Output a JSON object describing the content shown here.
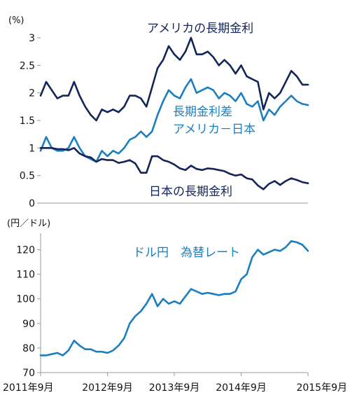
{
  "colors": {
    "navy": "#13245a",
    "blue": "#1a7fc1",
    "axis": "#9a9a9a"
  },
  "chart_data": [
    {
      "type": "line",
      "ylabel": "(%)",
      "ylim": [
        0,
        3
      ],
      "yticks": [
        "0",
        "0.5",
        "1",
        "1.5",
        "2",
        "2.5",
        "3"
      ],
      "x_range": [
        "2011-09",
        "2015-09"
      ],
      "series": [
        {
          "name": "アメリカの長期金利",
          "color": "navy",
          "points": [
            [
              "2011-09",
              1.95
            ],
            [
              "2011-10",
              2.2
            ],
            [
              "2011-11",
              2.05
            ],
            [
              "2011-12",
              1.9
            ],
            [
              "2012-01",
              1.95
            ],
            [
              "2012-02",
              1.95
            ],
            [
              "2012-03",
              2.2
            ],
            [
              "2012-04",
              1.95
            ],
            [
              "2012-05",
              1.75
            ],
            [
              "2012-06",
              1.6
            ],
            [
              "2012-07",
              1.5
            ],
            [
              "2012-08",
              1.7
            ],
            [
              "2012-09",
              1.65
            ],
            [
              "2012-10",
              1.7
            ],
            [
              "2012-11",
              1.65
            ],
            [
              "2012-12",
              1.75
            ],
            [
              "2013-01",
              1.95
            ],
            [
              "2013-02",
              1.95
            ],
            [
              "2013-03",
              1.9
            ],
            [
              "2013-04",
              1.75
            ],
            [
              "2013-05",
              2.1
            ],
            [
              "2013-06",
              2.45
            ],
            [
              "2013-07",
              2.6
            ],
            [
              "2013-08",
              2.85
            ],
            [
              "2013-09",
              2.7
            ],
            [
              "2013-10",
              2.6
            ],
            [
              "2013-11",
              2.75
            ],
            [
              "2013-12",
              3.0
            ],
            [
              "2014-01",
              2.7
            ],
            [
              "2014-02",
              2.7
            ],
            [
              "2014-03",
              2.75
            ],
            [
              "2014-04",
              2.65
            ],
            [
              "2014-05",
              2.5
            ],
            [
              "2014-06",
              2.6
            ],
            [
              "2014-07",
              2.5
            ],
            [
              "2014-08",
              2.35
            ],
            [
              "2014-09",
              2.5
            ],
            [
              "2014-10",
              2.3
            ],
            [
              "2014-11",
              2.25
            ],
            [
              "2014-12",
              2.2
            ],
            [
              "2015-01",
              1.7
            ],
            [
              "2015-02",
              2.0
            ],
            [
              "2015-03",
              1.9
            ],
            [
              "2015-04",
              2.0
            ],
            [
              "2015-05",
              2.2
            ],
            [
              "2015-06",
              2.4
            ],
            [
              "2015-07",
              2.3
            ],
            [
              "2015-08",
              2.15
            ],
            [
              "2015-09",
              2.15
            ]
          ]
        },
        {
          "name": "長期金利差 アメリカ－日本",
          "color": "blue",
          "points": [
            [
              "2011-09",
              0.95
            ],
            [
              "2011-10",
              1.2
            ],
            [
              "2011-11",
              1.0
            ],
            [
              "2011-12",
              0.95
            ],
            [
              "2012-01",
              0.95
            ],
            [
              "2012-02",
              1.0
            ],
            [
              "2012-03",
              1.2
            ],
            [
              "2012-04",
              1.0
            ],
            [
              "2012-05",
              0.85
            ],
            [
              "2012-06",
              0.8
            ],
            [
              "2012-07",
              0.75
            ],
            [
              "2012-08",
              0.95
            ],
            [
              "2012-09",
              0.85
            ],
            [
              "2012-10",
              0.95
            ],
            [
              "2012-11",
              0.9
            ],
            [
              "2012-12",
              1.0
            ],
            [
              "2013-01",
              1.15
            ],
            [
              "2013-02",
              1.2
            ],
            [
              "2013-03",
              1.3
            ],
            [
              "2013-04",
              1.2
            ],
            [
              "2013-05",
              1.3
            ],
            [
              "2013-06",
              1.6
            ],
            [
              "2013-07",
              1.85
            ],
            [
              "2013-08",
              2.05
            ],
            [
              "2013-09",
              1.95
            ],
            [
              "2013-10",
              1.9
            ],
            [
              "2013-11",
              2.1
            ],
            [
              "2013-12",
              2.25
            ],
            [
              "2014-01",
              2.0
            ],
            [
              "2014-02",
              2.05
            ],
            [
              "2014-03",
              2.1
            ],
            [
              "2014-04",
              2.05
            ],
            [
              "2014-05",
              1.9
            ],
            [
              "2014-06",
              2.0
            ],
            [
              "2014-07",
              1.95
            ],
            [
              "2014-08",
              1.85
            ],
            [
              "2014-09",
              2.0
            ],
            [
              "2014-10",
              1.8
            ],
            [
              "2014-11",
              1.75
            ],
            [
              "2014-12",
              1.85
            ],
            [
              "2015-01",
              1.5
            ],
            [
              "2015-02",
              1.7
            ],
            [
              "2015-03",
              1.6
            ],
            [
              "2015-04",
              1.75
            ],
            [
              "2015-05",
              1.85
            ],
            [
              "2015-06",
              1.95
            ],
            [
              "2015-07",
              1.85
            ],
            [
              "2015-08",
              1.8
            ],
            [
              "2015-09",
              1.78
            ]
          ]
        },
        {
          "name": "日本の長期金利",
          "color": "navy",
          "points": [
            [
              "2011-09",
              1.0
            ],
            [
              "2011-10",
              1.0
            ],
            [
              "2011-11",
              1.0
            ],
            [
              "2011-12",
              0.98
            ],
            [
              "2012-01",
              0.98
            ],
            [
              "2012-02",
              0.96
            ],
            [
              "2012-03",
              1.0
            ],
            [
              "2012-04",
              0.9
            ],
            [
              "2012-05",
              0.85
            ],
            [
              "2012-06",
              0.83
            ],
            [
              "2012-07",
              0.75
            ],
            [
              "2012-08",
              0.8
            ],
            [
              "2012-09",
              0.78
            ],
            [
              "2012-10",
              0.78
            ],
            [
              "2012-11",
              0.73
            ],
            [
              "2012-12",
              0.75
            ],
            [
              "2013-01",
              0.78
            ],
            [
              "2013-02",
              0.72
            ],
            [
              "2013-03",
              0.55
            ],
            [
              "2013-04",
              0.55
            ],
            [
              "2013-05",
              0.85
            ],
            [
              "2013-06",
              0.85
            ],
            [
              "2013-07",
              0.78
            ],
            [
              "2013-08",
              0.75
            ],
            [
              "2013-09",
              0.7
            ],
            [
              "2013-10",
              0.63
            ],
            [
              "2013-11",
              0.6
            ],
            [
              "2013-12",
              0.68
            ],
            [
              "2014-01",
              0.62
            ],
            [
              "2014-02",
              0.6
            ],
            [
              "2014-03",
              0.63
            ],
            [
              "2014-04",
              0.62
            ],
            [
              "2014-05",
              0.6
            ],
            [
              "2014-06",
              0.58
            ],
            [
              "2014-07",
              0.53
            ],
            [
              "2014-08",
              0.5
            ],
            [
              "2014-09",
              0.52
            ],
            [
              "2014-10",
              0.45
            ],
            [
              "2014-11",
              0.43
            ],
            [
              "2014-12",
              0.32
            ],
            [
              "2015-01",
              0.25
            ],
            [
              "2015-02",
              0.35
            ],
            [
              "2015-03",
              0.4
            ],
            [
              "2015-04",
              0.33
            ],
            [
              "2015-05",
              0.4
            ],
            [
              "2015-06",
              0.45
            ],
            [
              "2015-07",
              0.42
            ],
            [
              "2015-08",
              0.38
            ],
            [
              "2015-09",
              0.36
            ]
          ]
        }
      ]
    },
    {
      "type": "line",
      "ylabel": "(円／ドル)",
      "ylim": [
        70,
        125
      ],
      "yticks": [
        "70",
        "80",
        "90",
        "100",
        "110",
        "120"
      ],
      "xticks": [
        "2011年9月",
        "2012年9月",
        "2013年9月",
        "2014年9月",
        "2015年9月"
      ],
      "x_range": [
        "2011-09",
        "2015-09"
      ],
      "series": [
        {
          "name": "ドル円　為替レート",
          "color": "blue",
          "points": [
            [
              "2011-09",
              77
            ],
            [
              "2011-10",
              77
            ],
            [
              "2011-11",
              77.5
            ],
            [
              "2011-12",
              78
            ],
            [
              "2012-01",
              77
            ],
            [
              "2012-02",
              79
            ],
            [
              "2012-03",
              83
            ],
            [
              "2012-04",
              81
            ],
            [
              "2012-05",
              79.5
            ],
            [
              "2012-06",
              79.5
            ],
            [
              "2012-07",
              78.5
            ],
            [
              "2012-08",
              78.5
            ],
            [
              "2012-09",
              78
            ],
            [
              "2012-10",
              79
            ],
            [
              "2012-11",
              81
            ],
            [
              "2012-12",
              84
            ],
            [
              "2013-01",
              90
            ],
            [
              "2013-02",
              93
            ],
            [
              "2013-03",
              95
            ],
            [
              "2013-04",
              98
            ],
            [
              "2013-05",
              102
            ],
            [
              "2013-06",
              97
            ],
            [
              "2013-07",
              100
            ],
            [
              "2013-08",
              98
            ],
            [
              "2013-09",
              99
            ],
            [
              "2013-10",
              98
            ],
            [
              "2013-11",
              101
            ],
            [
              "2013-12",
              104
            ],
            [
              "2014-01",
              103
            ],
            [
              "2014-02",
              102
            ],
            [
              "2014-03",
              102.5
            ],
            [
              "2014-04",
              102
            ],
            [
              "2014-05",
              101.5
            ],
            [
              "2014-06",
              102
            ],
            [
              "2014-07",
              102
            ],
            [
              "2014-08",
              103
            ],
            [
              "2014-09",
              108
            ],
            [
              "2014-10",
              110
            ],
            [
              "2014-11",
              117
            ],
            [
              "2014-12",
              120
            ],
            [
              "2015-01",
              118
            ],
            [
              "2015-02",
              119
            ],
            [
              "2015-03",
              120
            ],
            [
              "2015-04",
              119.5
            ],
            [
              "2015-05",
              121
            ],
            [
              "2015-06",
              123.5
            ],
            [
              "2015-07",
              123
            ],
            [
              "2015-08",
              122
            ],
            [
              "2015-09",
              119.5
            ]
          ]
        }
      ]
    }
  ],
  "labels": {
    "us_yield": "アメリカの長期金利",
    "spread_line1": "長期金利差",
    "spread_line2": "アメリカ－日本",
    "jp_yield": "日本の長期金利",
    "fx": "ドル円　為替レート"
  }
}
